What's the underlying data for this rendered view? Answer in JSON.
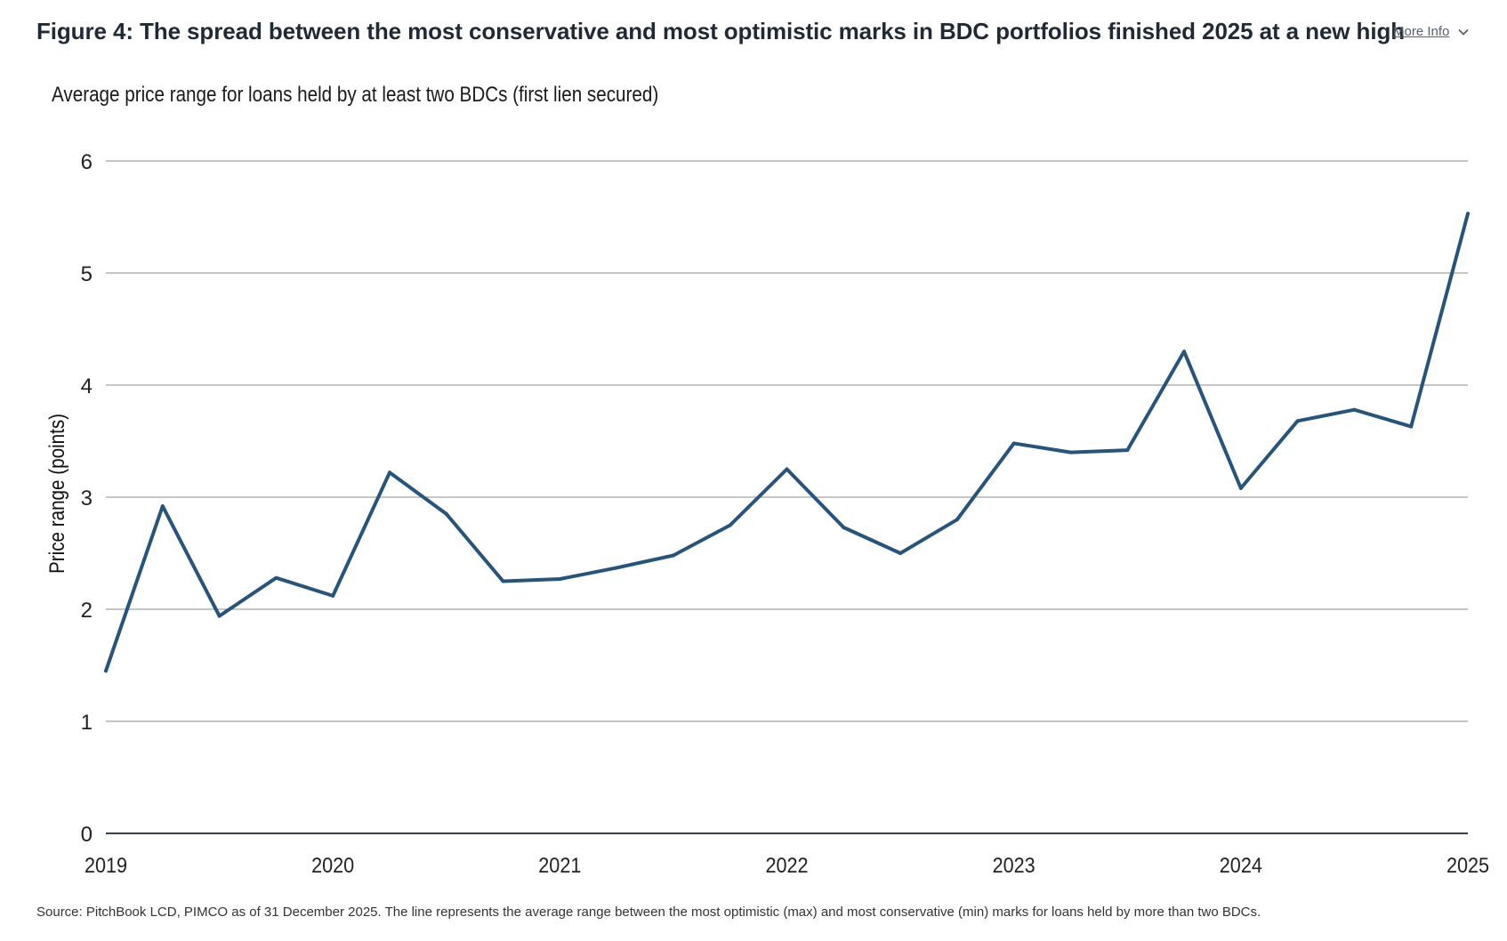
{
  "header": {
    "title": "Figure 4: The spread between the most conservative and most optimistic marks in BDC portfolios finished 2025 at a new high",
    "more_info_label": "More Info",
    "more_info_icon": "chevron-down-icon"
  },
  "footer": {
    "source": "Source: PitchBook LCD, PIMCO as of 31 December 2025. The line represents the average range between the most optimistic (max) and most conservative (min) marks for loans held by more than two BDCs."
  },
  "colors": {
    "line": "#26547c",
    "grid": "#8c8c8c",
    "axis": "#333f4f"
  },
  "chart_data": {
    "type": "line",
    "title": "Average price range for loans held by at least two BDCs (first lien secured)",
    "xlabel": "",
    "ylabel": "Price range (points)",
    "ylim": [
      0,
      6
    ],
    "xlim": [
      2019,
      2025
    ],
    "yticks": [
      0,
      1,
      2,
      3,
      4,
      5,
      6
    ],
    "xticks": [
      "2019",
      "2020",
      "2021",
      "2022",
      "2023",
      "2024",
      "2025"
    ],
    "grid": true,
    "legend": "none",
    "x": [
      2019.0,
      2019.25,
      2019.5,
      2019.75,
      2020.0,
      2020.25,
      2020.5,
      2020.75,
      2021.0,
      2021.25,
      2021.5,
      2021.75,
      2022.0,
      2022.25,
      2022.5,
      2022.75,
      2023.0,
      2023.25,
      2023.5,
      2023.75,
      2024.0,
      2024.25,
      2024.5,
      2024.75,
      2025.0
    ],
    "series": [
      {
        "values": [
          1.45,
          2.92,
          1.94,
          2.28,
          2.12,
          3.22,
          2.85,
          2.25,
          2.27,
          2.37,
          2.48,
          2.75,
          3.25,
          2.73,
          2.5,
          2.8,
          3.48,
          3.4,
          3.42,
          4.3,
          3.08,
          3.68,
          3.78,
          3.63,
          5.53
        ]
      }
    ]
  }
}
